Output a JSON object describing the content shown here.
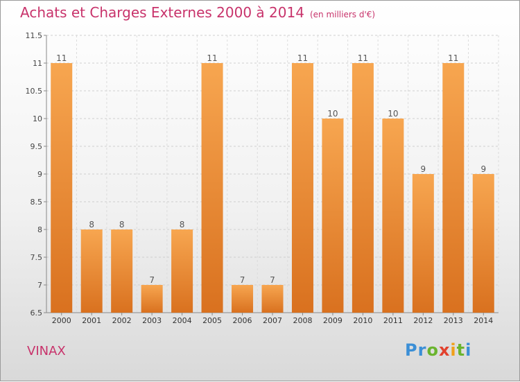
{
  "header": {
    "title": "Achats et Charges Externes 2000 à 2014",
    "unit": "(en milliers d'€)"
  },
  "footer": {
    "commune": "VINAX",
    "brand": "Proxiti"
  },
  "colors": {
    "title": "#c8336b",
    "bar_light": "#f7a650",
    "bar_dark": "#d9711f"
  },
  "chart_data": {
    "type": "bar",
    "title": "Achats et Charges Externes 2000 à 2014",
    "categories": [
      "2000",
      "2001",
      "2002",
      "2003",
      "2004",
      "2005",
      "2006",
      "2007",
      "2008",
      "2009",
      "2010",
      "2011",
      "2012",
      "2013",
      "2014"
    ],
    "values": [
      11,
      8,
      8,
      7,
      8,
      11,
      7,
      7,
      11,
      10,
      11,
      10,
      9,
      11,
      9
    ],
    "ylim": [
      6.5,
      11.5
    ],
    "yticks": [
      6.5,
      7,
      7.5,
      8,
      8.5,
      9,
      9.5,
      10,
      10.5,
      11,
      11.5
    ],
    "ytick_labels": [
      "6.5",
      "7",
      "7.5",
      "8",
      "8.5",
      "9",
      "9.5",
      "10",
      "10.5",
      "11",
      "11.5"
    ],
    "xlabel": "",
    "ylabel": "",
    "grid": true
  }
}
